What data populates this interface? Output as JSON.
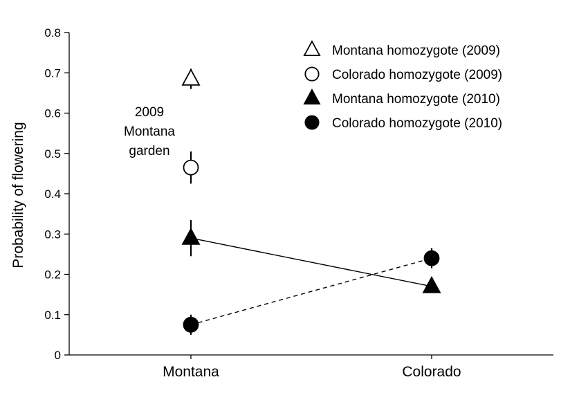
{
  "chart_data": {
    "type": "scatter",
    "categories": [
      "Montana",
      "Colorado"
    ],
    "ylabel": "Probability of flowering",
    "ylim": [
      0,
      0.8
    ],
    "yticks": [
      "0",
      "0.1",
      "0.2",
      "0.3",
      "0.4",
      "0.5",
      "0.6",
      "0.7",
      "0.8"
    ],
    "grid": false,
    "legend_position": "top-right",
    "annotation": [
      "2009",
      "Montana",
      "garden"
    ],
    "series": [
      {
        "name": "Montana homozygote (2009)",
        "marker": "triangle",
        "filled": false,
        "line": "none",
        "points": [
          {
            "category": "Montana",
            "y": 0.685,
            "err_low": 0.66,
            "err_high": 0.71
          }
        ]
      },
      {
        "name": "Colorado homozygote (2009)",
        "marker": "circle",
        "filled": false,
        "line": "none",
        "points": [
          {
            "category": "Montana",
            "y": 0.465,
            "err_low": 0.425,
            "err_high": 0.505
          }
        ]
      },
      {
        "name": "Montana homozygote (2010)",
        "marker": "triangle",
        "filled": true,
        "line": "solid",
        "points": [
          {
            "category": "Montana",
            "y": 0.29,
            "err_low": 0.245,
            "err_high": 0.335
          },
          {
            "category": "Colorado",
            "y": 0.17,
            "err_low": 0.16,
            "err_high": 0.18
          }
        ]
      },
      {
        "name": "Colorado homozygote (2010)",
        "marker": "circle",
        "filled": true,
        "line": "dashed",
        "points": [
          {
            "category": "Montana",
            "y": 0.075,
            "err_low": 0.05,
            "err_high": 0.1
          },
          {
            "category": "Colorado",
            "y": 0.24,
            "err_low": 0.215,
            "err_high": 0.265
          }
        ]
      }
    ]
  }
}
